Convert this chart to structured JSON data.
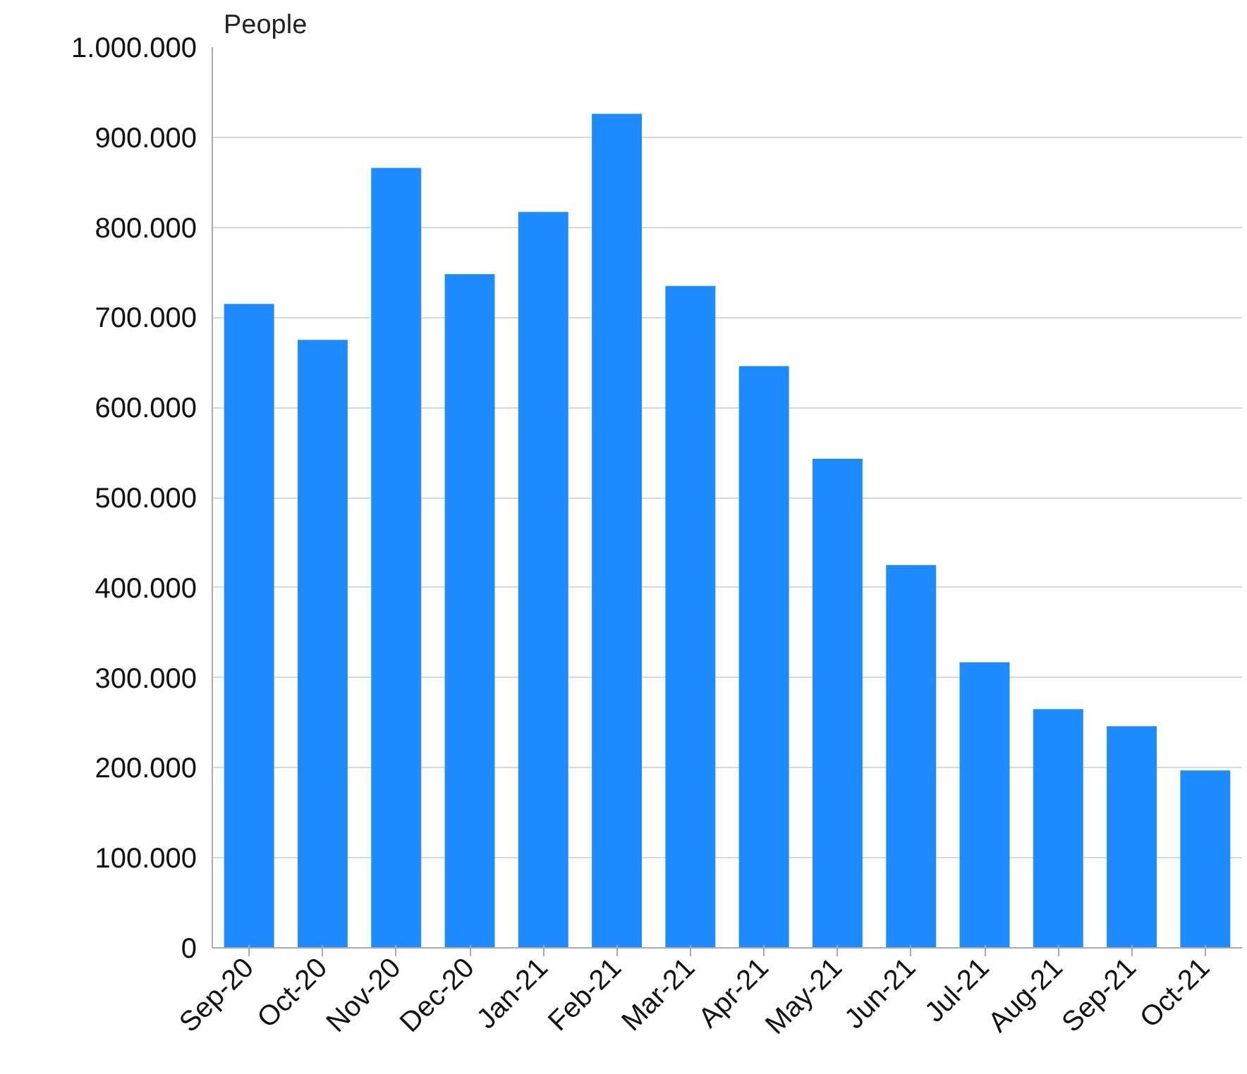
{
  "chart_data": {
    "type": "bar",
    "ylabel": "People",
    "categories": [
      "Sep-20",
      "Oct-20",
      "Nov-20",
      "Dec-20",
      "Jan-21",
      "Feb-21",
      "Mar-21",
      "Apr-21",
      "May-21",
      "Jun-21",
      "Jul-21",
      "Aug-21",
      "Sep-21",
      "Oct-21"
    ],
    "values": [
      715000,
      675000,
      866000,
      748000,
      817000,
      926000,
      735000,
      646000,
      543000,
      425000,
      317000,
      265000,
      246000,
      197000
    ],
    "color": "#1e8cff",
    "ylim": [
      0,
      1000000
    ],
    "yticks": [
      0,
      {
        "value": 100000,
        "label": "100.000"
      },
      {
        "value": 200000,
        "label": "200.000"
      },
      {
        "value": 300000,
        "label": "300.000"
      },
      {
        "value": 400000,
        "label": "400.000"
      },
      {
        "value": 500000,
        "label": "500.000"
      },
      {
        "value": 600000,
        "label": "600.000"
      },
      {
        "value": 700000,
        "label": "700.000"
      },
      {
        "value": 800000,
        "label": "800.000"
      },
      {
        "value": 900000,
        "label": "900.000"
      },
      {
        "value": 1000000,
        "label": "1.000.000"
      }
    ],
    "grid": "y"
  }
}
